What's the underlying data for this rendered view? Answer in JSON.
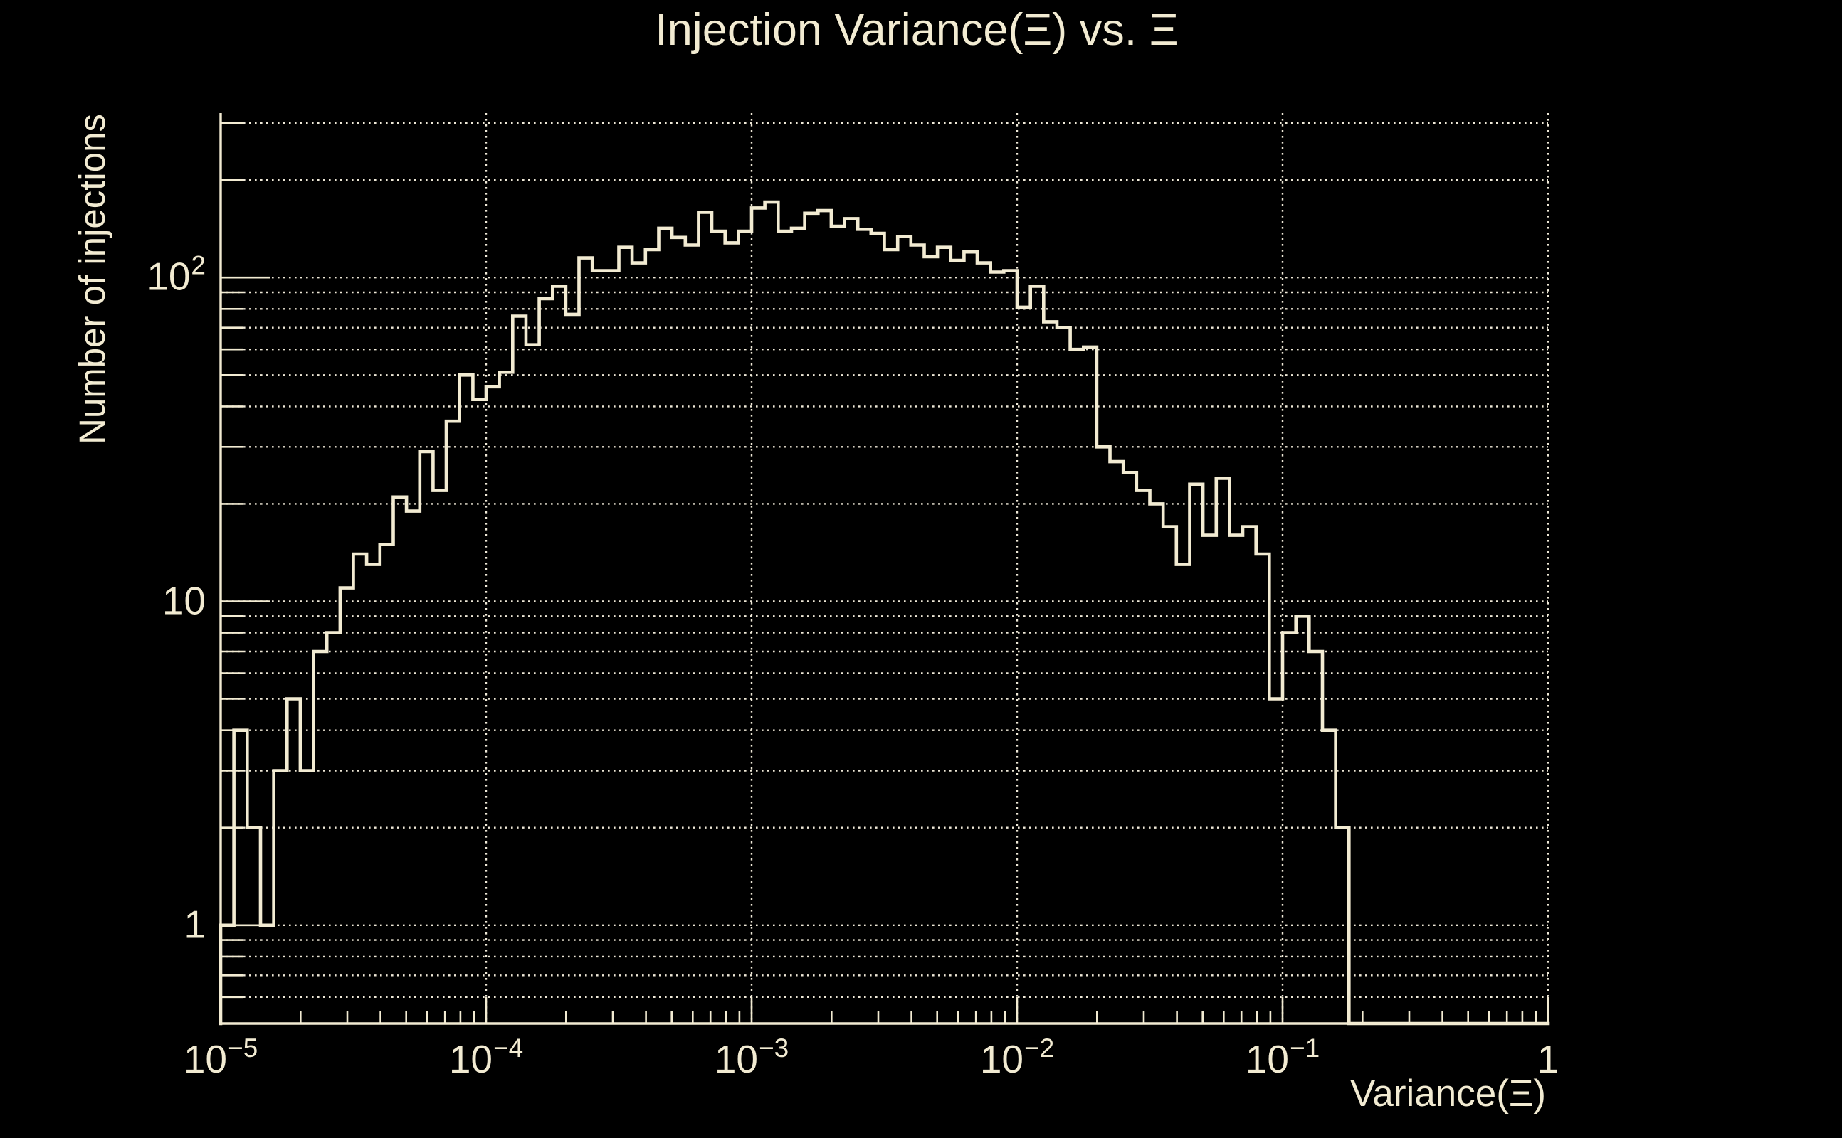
{
  "title": "Injection Variance(Ξ) vs. Ξ",
  "colors": {
    "background": "#000000",
    "foreground": "#f2ebd2",
    "grid": "#efe9d8"
  },
  "x_axis": {
    "title": "Variance(Ξ)",
    "scale": "log",
    "min": 1e-05,
    "max": 1,
    "tick_labels": [
      {
        "value": 1e-05,
        "base": "10",
        "exp": "−5"
      },
      {
        "value": 0.0001,
        "base": "10",
        "exp": "−4"
      },
      {
        "value": 0.001,
        "base": "10",
        "exp": "−3"
      },
      {
        "value": 0.01,
        "base": "10",
        "exp": "−2"
      },
      {
        "value": 0.1,
        "base": "10",
        "exp": "−1"
      },
      {
        "value": 1,
        "base": "1",
        "exp": ""
      }
    ]
  },
  "y_axis": {
    "title": "Number of injections",
    "scale": "log",
    "min": 0.497,
    "max": 322,
    "tick_labels": [
      {
        "value": 1,
        "base": "1",
        "exp": ""
      },
      {
        "value": 10,
        "base": "10",
        "exp": ""
      },
      {
        "value": 100,
        "base": "10",
        "exp": "2"
      }
    ]
  },
  "chart_data": {
    "type": "bar",
    "subtype": "step-outline-histogram",
    "title": "Injection Variance(Ξ) vs. Ξ",
    "xlabel": "Variance(Ξ)",
    "ylabel": "Number of injections",
    "x_scale": "log",
    "y_scale": "log",
    "xlim": [
      1e-05,
      1
    ],
    "ylim": [
      0.497,
      322
    ],
    "grid": "dotted",
    "legend": "none",
    "bins_per_decade": 20,
    "bin_edges_rule": "edge_i = 10^(-5 + i/20), i = 0..100",
    "values": [
      1,
      4,
      2,
      1,
      3,
      5,
      3,
      7,
      8,
      11,
      14,
      13,
      15,
      21,
      19,
      29,
      22,
      36,
      50,
      42,
      46,
      51,
      76,
      62,
      86,
      94,
      77,
      115,
      105,
      105,
      124,
      111,
      122,
      142,
      133,
      126,
      159,
      139,
      128,
      139,
      164,
      171,
      139,
      142,
      158,
      161,
      144,
      152,
      141,
      137,
      122,
      134,
      126,
      116,
      124,
      113,
      120,
      111,
      104,
      105,
      81,
      94,
      73,
      70,
      60,
      61,
      30,
      27,
      25,
      22,
      20,
      17,
      13,
      23,
      16,
      24,
      16,
      17,
      14,
      5,
      8,
      9,
      7,
      4,
      2,
      0,
      0,
      0,
      0,
      0,
      0,
      0,
      0,
      0,
      0,
      0,
      0,
      0,
      0,
      0
    ]
  }
}
